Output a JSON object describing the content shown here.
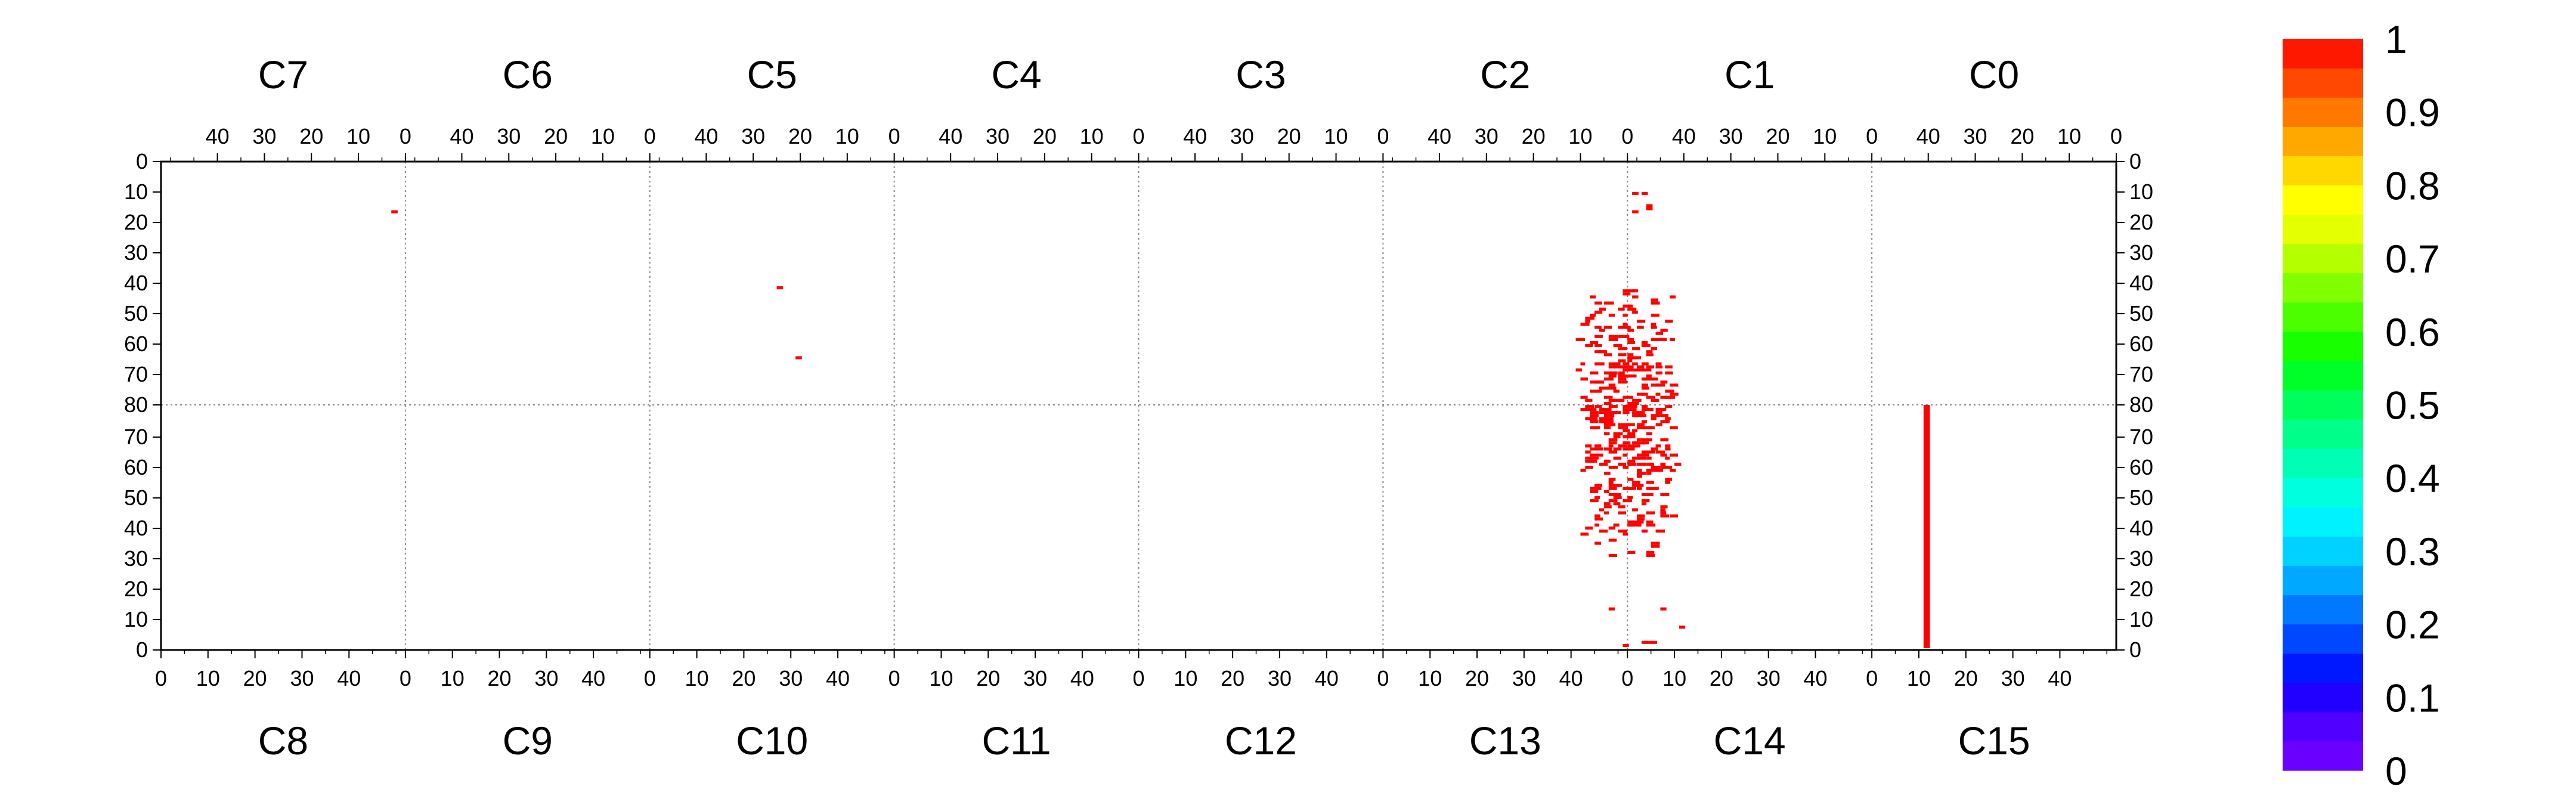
{
  "chart_data": {
    "type": "heatmap",
    "title": "",
    "top_chip_labels": [
      "C7",
      "C6",
      "C5",
      "C4",
      "C3",
      "C2",
      "C1",
      "C0"
    ],
    "bottom_chip_labels": [
      "C8",
      "C9",
      "C10",
      "C11",
      "C12",
      "C13",
      "C14",
      "C15"
    ],
    "top_x_tick_labels": [
      "40",
      "30",
      "20",
      "10",
      "0"
    ],
    "top_x_tick_values": [
      40,
      30,
      20,
      10,
      0
    ],
    "bottom_x_tick_labels": [
      "0",
      "10",
      "20",
      "30",
      "40"
    ],
    "bottom_x_tick_values": [
      0,
      10,
      20,
      30,
      40
    ],
    "top_y_tick_labels": [
      "0",
      "10",
      "20",
      "30",
      "40",
      "50",
      "60",
      "70",
      "80"
    ],
    "top_y_tick_values": [
      0,
      10,
      20,
      30,
      40,
      50,
      60,
      70,
      80
    ],
    "bottom_y_tick_labels": [
      "70",
      "60",
      "50",
      "40",
      "30",
      "20",
      "10",
      "0"
    ],
    "bottom_y_tick_values": [
      70,
      60,
      50,
      40,
      30,
      20,
      10,
      0
    ],
    "chip_columns": 52,
    "chip_rows": 80,
    "colorbar": {
      "range": [
        0,
        1
      ],
      "tick_labels": [
        "1",
        "0.9",
        "0.8",
        "0.7",
        "0.6",
        "0.5",
        "0.4",
        "0.3",
        "0.2",
        "0.1",
        "0"
      ],
      "tick_values": [
        1,
        0.9,
        0.8,
        0.7,
        0.6,
        0.5,
        0.4,
        0.3,
        0.2,
        0.1,
        0
      ],
      "colors": [
        "#6a00ff",
        "#4f00ff",
        "#2200ff",
        "#0018ff",
        "#0048ff",
        "#0078ff",
        "#00a8ff",
        "#00d2ff",
        "#00f2ff",
        "#00ffde",
        "#00ffb4",
        "#00ff8a",
        "#00ff5a",
        "#00ff28",
        "#18ff00",
        "#4cff00",
        "#80ff00",
        "#b4ff00",
        "#e4ff00",
        "#ffff00",
        "#ffd800",
        "#ffa800",
        "#ff7800",
        "#ff4800",
        "#ff1800"
      ]
    },
    "active_pixels": [
      {
        "chip": "C7",
        "col": 2,
        "row": 16,
        "value": 1
      },
      {
        "chip": "C5",
        "col": 24,
        "row": 41,
        "value": 1
      },
      {
        "chip": "C5",
        "col": 20,
        "row": 64,
        "value": 1
      },
      {
        "chip": "C1",
        "col": 50,
        "row": 10,
        "value": 1
      },
      {
        "chip": "C1",
        "col": 48,
        "row": 10,
        "value": 1
      },
      {
        "chip": "C1",
        "col": 47,
        "row": 14,
        "value": 1
      },
      {
        "chip": "C1",
        "col": 47,
        "row": 15,
        "value": 1
      },
      {
        "chip": "C1",
        "col": 50,
        "row": 16,
        "value": 1
      },
      {
        "chip": "C15",
        "col": 11,
        "row": 0,
        "value": 1,
        "height": 80
      }
    ],
    "cluster": {
      "chips": [
        "C2",
        "C1",
        "C13",
        "C14"
      ],
      "value": 1,
      "top_rows": [
        40,
        80
      ],
      "bottom_rows": [
        80,
        30
      ]
    }
  }
}
